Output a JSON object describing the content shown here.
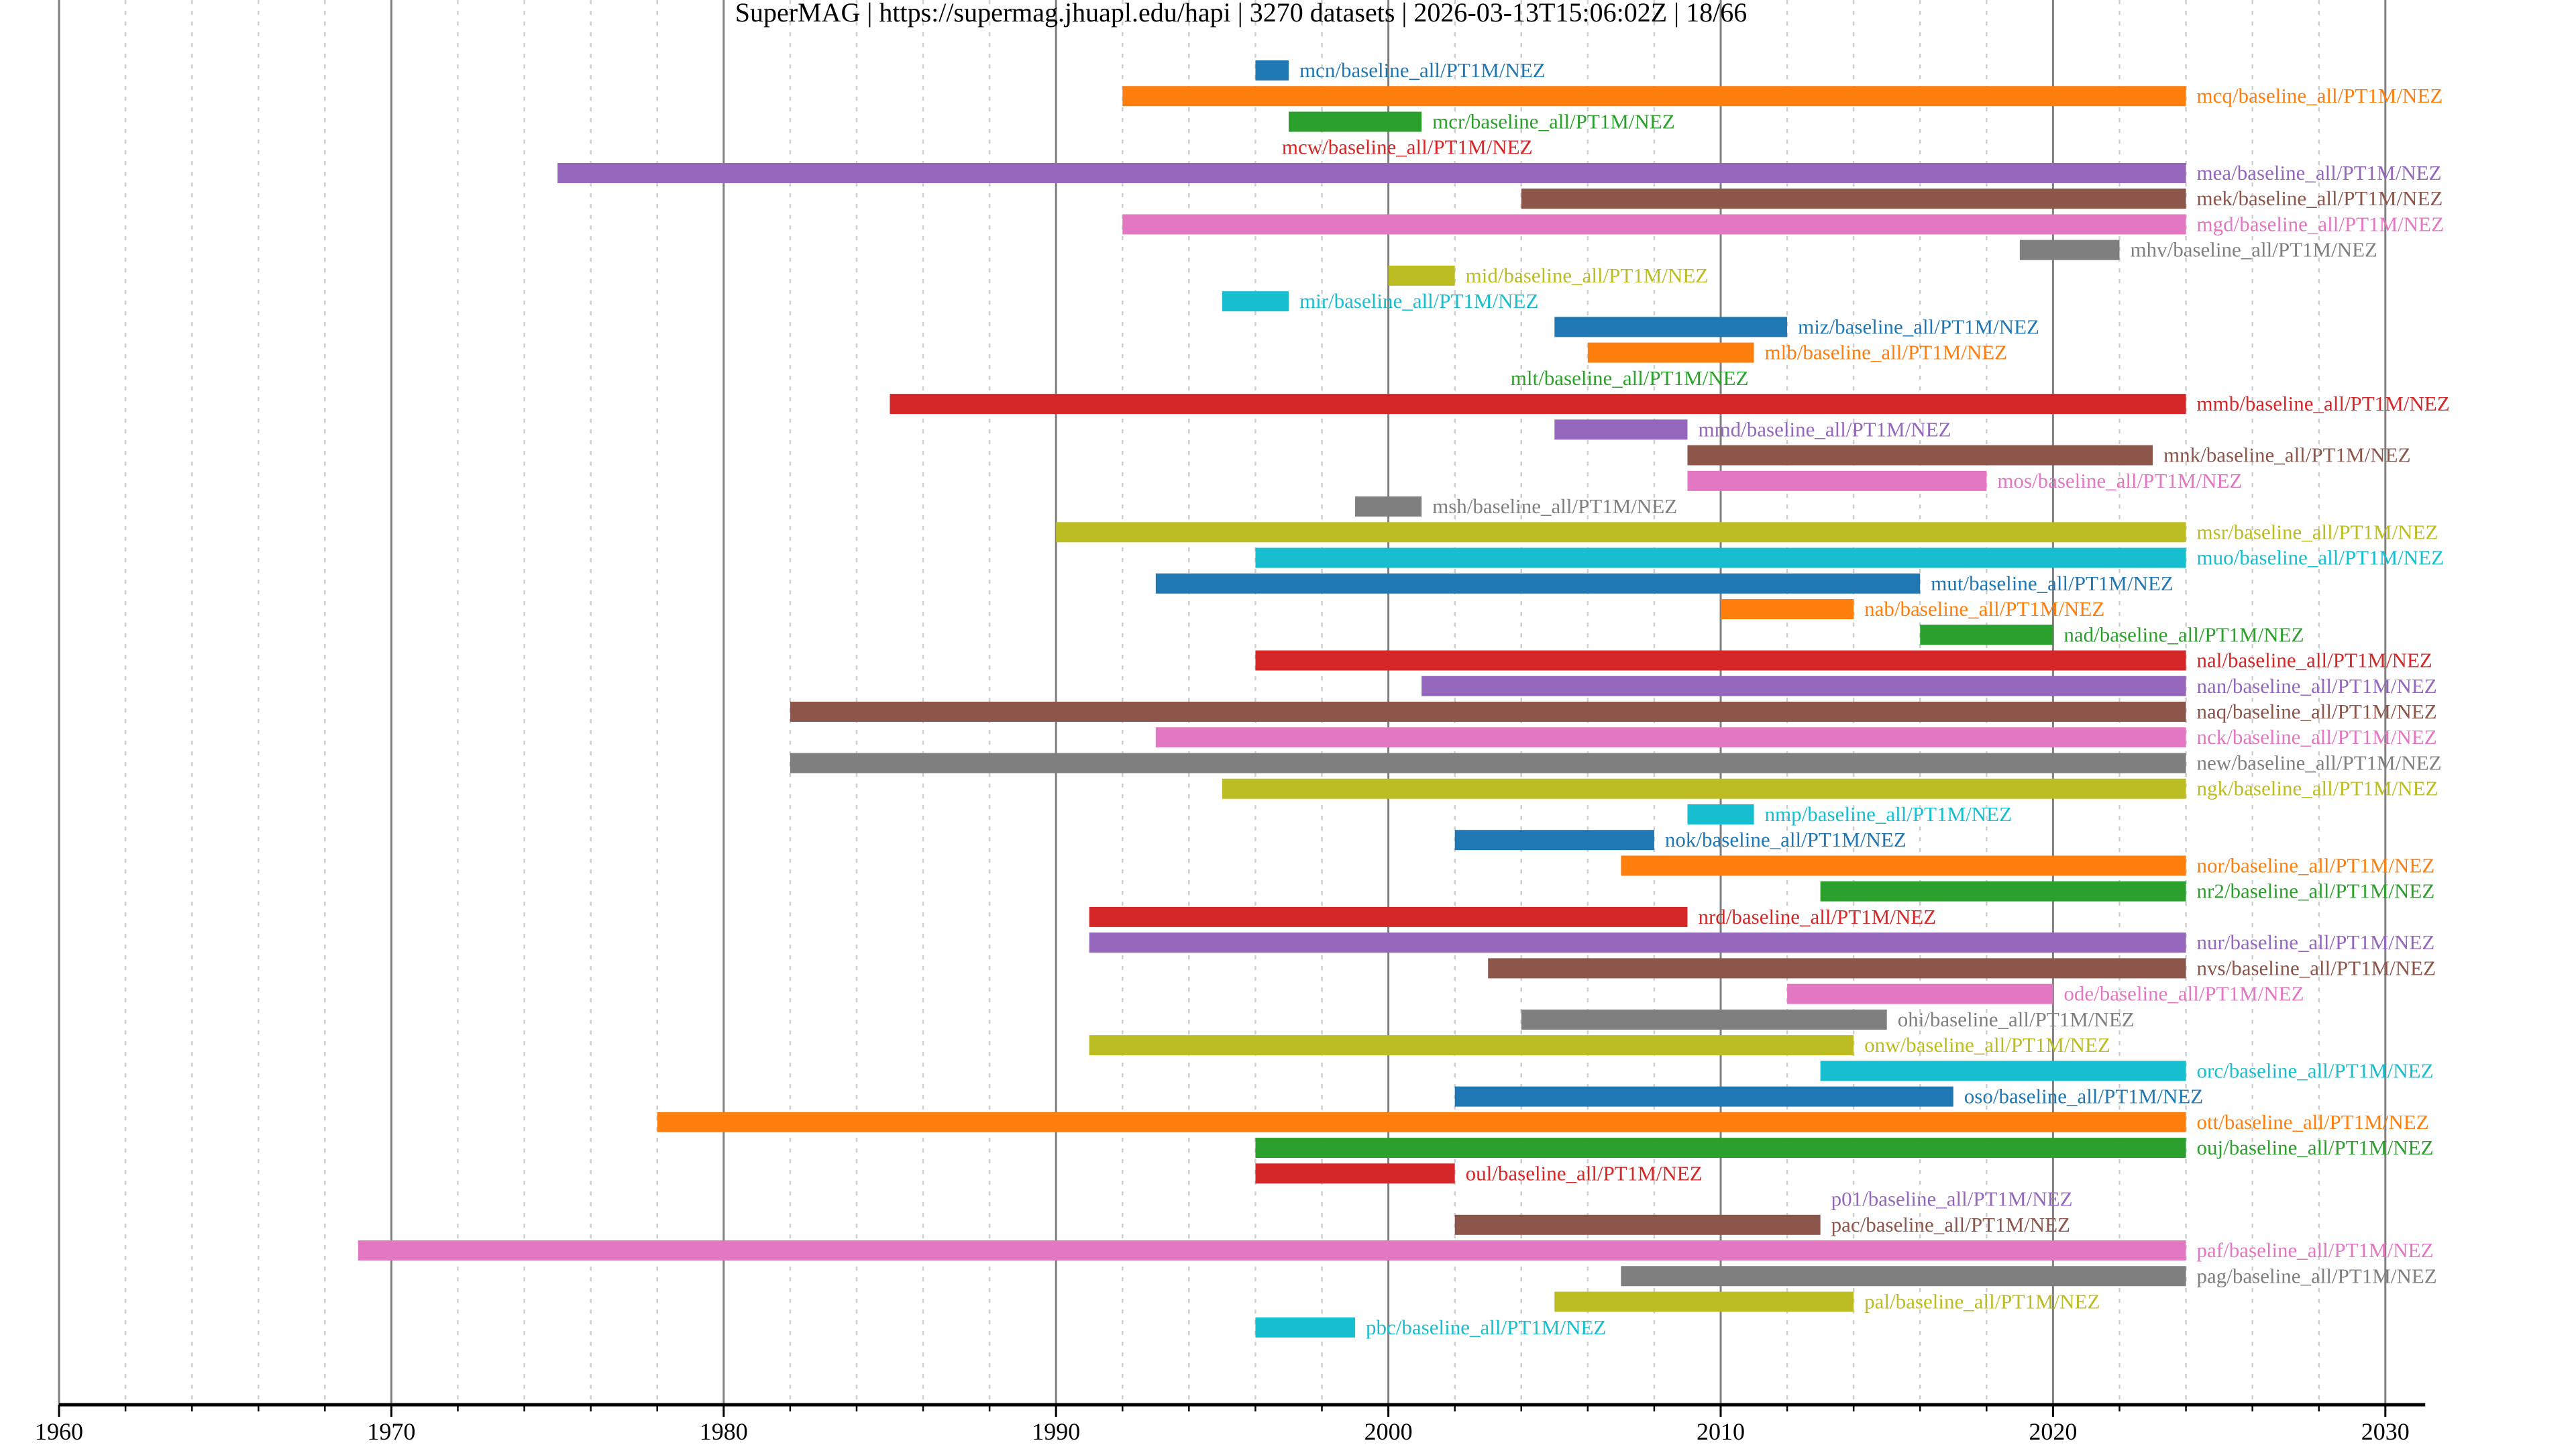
{
  "chart_data": {
    "type": "bar",
    "orientation": "horizontal-timeline",
    "title": "SuperMAG | https://supermag.jhuapl.edu/hapi | 3270 datasets | 2026-03-13T15:06:02Z | 18/66",
    "xlabel": "",
    "ylabel": "",
    "xlim": [
      1960,
      2031.2
    ],
    "x_major_ticks": [
      1960,
      1970,
      1980,
      1990,
      2000,
      2010,
      2020,
      2030
    ],
    "x_tick_labels": [
      "1960",
      "1970",
      "1980",
      "1990",
      "2000",
      "2010",
      "2020",
      "2030"
    ],
    "x_minor_tick_step": 2,
    "grid": "major solid vertical, minor dotted vertical",
    "palette": [
      "#1f77b4",
      "#ff7f0e",
      "#2ca02c",
      "#d62728",
      "#9467bd",
      "#8c564b",
      "#e377c2",
      "#7f7f7f",
      "#bcbd22",
      "#17becf"
    ],
    "series": [
      {
        "name": "mcn/baseline_all/PT1M/NEZ",
        "start": 1996,
        "end": 1997,
        "label_side": "right"
      },
      {
        "name": "mcq/baseline_all/PT1M/NEZ",
        "start": 1992,
        "end": 2024,
        "label_side": "right"
      },
      {
        "name": "mcr/baseline_all/PT1M/NEZ",
        "start": 1997,
        "end": 2001,
        "label_side": "right"
      },
      {
        "name": "mcw/baseline_all/PT1M/NEZ",
        "start": 2004.5,
        "end": 2004.5,
        "label_side": "left"
      },
      {
        "name": "mea/baseline_all/PT1M/NEZ",
        "start": 1975,
        "end": 2024,
        "label_side": "right"
      },
      {
        "name": "mek/baseline_all/PT1M/NEZ",
        "start": 2004,
        "end": 2024,
        "label_side": "right"
      },
      {
        "name": "mgd/baseline_all/PT1M/NEZ",
        "start": 1992,
        "end": 2024,
        "label_side": "right"
      },
      {
        "name": "mhv/baseline_all/PT1M/NEZ",
        "start": 2019,
        "end": 2022,
        "label_side": "right"
      },
      {
        "name": "mid/baseline_all/PT1M/NEZ",
        "start": 2000,
        "end": 2002,
        "label_side": "right"
      },
      {
        "name": "mir/baseline_all/PT1M/NEZ",
        "start": 1995,
        "end": 1997,
        "label_side": "right"
      },
      {
        "name": "miz/baseline_all/PT1M/NEZ",
        "start": 2005,
        "end": 2012,
        "label_side": "right"
      },
      {
        "name": "mlb/baseline_all/PT1M/NEZ",
        "start": 2006,
        "end": 2011,
        "label_side": "right"
      },
      {
        "name": "mlt/baseline_all/PT1M/NEZ",
        "start": 2011,
        "end": 2011,
        "label_side": "left"
      },
      {
        "name": "mmb/baseline_all/PT1M/NEZ",
        "start": 1985,
        "end": 2024,
        "label_side": "right"
      },
      {
        "name": "mmd/baseline_all/PT1M/NEZ",
        "start": 2005,
        "end": 2009,
        "label_side": "right"
      },
      {
        "name": "mnk/baseline_all/PT1M/NEZ",
        "start": 2009,
        "end": 2023,
        "label_side": "right"
      },
      {
        "name": "mos/baseline_all/PT1M/NEZ",
        "start": 2009,
        "end": 2018,
        "label_side": "right"
      },
      {
        "name": "msh/baseline_all/PT1M/NEZ",
        "start": 1999,
        "end": 2001,
        "label_side": "right"
      },
      {
        "name": "msr/baseline_all/PT1M/NEZ",
        "start": 1990,
        "end": 2024,
        "label_side": "right"
      },
      {
        "name": "muo/baseline_all/PT1M/NEZ",
        "start": 1996,
        "end": 2024,
        "label_side": "right"
      },
      {
        "name": "mut/baseline_all/PT1M/NEZ",
        "start": 1993,
        "end": 2016,
        "label_side": "right"
      },
      {
        "name": "nab/baseline_all/PT1M/NEZ",
        "start": 2010,
        "end": 2014,
        "label_side": "right"
      },
      {
        "name": "nad/baseline_all/PT1M/NEZ",
        "start": 2016,
        "end": 2020,
        "label_side": "right"
      },
      {
        "name": "nal/baseline_all/PT1M/NEZ",
        "start": 1996,
        "end": 2024,
        "label_side": "right"
      },
      {
        "name": "nan/baseline_all/PT1M/NEZ",
        "start": 2001,
        "end": 2024,
        "label_side": "right"
      },
      {
        "name": "naq/baseline_all/PT1M/NEZ",
        "start": 1982,
        "end": 2024,
        "label_side": "right"
      },
      {
        "name": "nck/baseline_all/PT1M/NEZ",
        "start": 1993,
        "end": 2024,
        "label_side": "right"
      },
      {
        "name": "new/baseline_all/PT1M/NEZ",
        "start": 1982,
        "end": 2024,
        "label_side": "right"
      },
      {
        "name": "ngk/baseline_all/PT1M/NEZ",
        "start": 1995,
        "end": 2024,
        "label_side": "right"
      },
      {
        "name": "nmp/baseline_all/PT1M/NEZ",
        "start": 2009,
        "end": 2011,
        "label_side": "right"
      },
      {
        "name": "nok/baseline_all/PT1M/NEZ",
        "start": 2002,
        "end": 2008,
        "label_side": "right"
      },
      {
        "name": "nor/baseline_all/PT1M/NEZ",
        "start": 2007,
        "end": 2024,
        "label_side": "right"
      },
      {
        "name": "nr2/baseline_all/PT1M/NEZ",
        "start": 2013,
        "end": 2024,
        "label_side": "right"
      },
      {
        "name": "nrd/baseline_all/PT1M/NEZ",
        "start": 1991,
        "end": 2009,
        "label_side": "right"
      },
      {
        "name": "nur/baseline_all/PT1M/NEZ",
        "start": 1991,
        "end": 2024,
        "label_side": "right"
      },
      {
        "name": "nvs/baseline_all/PT1M/NEZ",
        "start": 2003,
        "end": 2024,
        "label_side": "right"
      },
      {
        "name": "ode/baseline_all/PT1M/NEZ",
        "start": 2012,
        "end": 2020,
        "label_side": "right"
      },
      {
        "name": "ohi/baseline_all/PT1M/NEZ",
        "start": 2004,
        "end": 2015,
        "label_side": "right"
      },
      {
        "name": "onw/baseline_all/PT1M/NEZ",
        "start": 1991,
        "end": 2014,
        "label_side": "right"
      },
      {
        "name": "orc/baseline_all/PT1M/NEZ",
        "start": 2013,
        "end": 2024,
        "label_side": "right"
      },
      {
        "name": "oso/baseline_all/PT1M/NEZ",
        "start": 2002,
        "end": 2017,
        "label_side": "right"
      },
      {
        "name": "ott/baseline_all/PT1M/NEZ",
        "start": 1978,
        "end": 2024,
        "label_side": "right"
      },
      {
        "name": "ouj/baseline_all/PT1M/NEZ",
        "start": 1996,
        "end": 2024,
        "label_side": "right"
      },
      {
        "name": "oul/baseline_all/PT1M/NEZ",
        "start": 1996,
        "end": 2002,
        "label_side": "right"
      },
      {
        "name": "p01/baseline_all/PT1M/NEZ",
        "start": 2013,
        "end": 2013,
        "label_side": "right"
      },
      {
        "name": "pac/baseline_all/PT1M/NEZ",
        "start": 2002,
        "end": 2013,
        "label_side": "right"
      },
      {
        "name": "paf/baseline_all/PT1M/NEZ",
        "start": 1969,
        "end": 2024,
        "label_side": "right"
      },
      {
        "name": "pag/baseline_all/PT1M/NEZ",
        "start": 2007,
        "end": 2024,
        "label_side": "right"
      },
      {
        "name": "pal/baseline_all/PT1M/NEZ",
        "start": 2005,
        "end": 2014,
        "label_side": "right"
      },
      {
        "name": "pbc/baseline_all/PT1M/NEZ",
        "start": 1996,
        "end": 1999,
        "label_side": "right"
      }
    ]
  }
}
